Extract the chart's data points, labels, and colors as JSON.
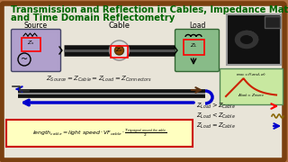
{
  "bg_color": "#b07040",
  "board_color": "#e8e4d8",
  "border_color": "#7a4010",
  "title_line1": "Transmission and Reflection in Cables, Impedance Matching,",
  "title_line2": "and Time Domain Reflectometry",
  "title_color": "#006400",
  "title_fontsize": 7.2,
  "source_box_color": "#b0a0cc",
  "load_box_color": "#88bb88",
  "source_label": "Source",
  "cable_label": "Cable",
  "load_label": "Load",
  "impedance_eq": "$Z_{Source} = Z_{Cable} = Z_{Load} = Z_{Connectors}$",
  "formula_box_color": "#ffffc0",
  "z_load_gt": "$Z_{Load}  >  Z_{Cable}$",
  "z_load_lt": "$Z_{Load}  <  Z_{Cable}$",
  "z_load_eq": "$Z_{Load}  =  Z_{Cable}$",
  "tdr_box_color": "#c8e8a0",
  "cable_photo_bg": "#111111"
}
